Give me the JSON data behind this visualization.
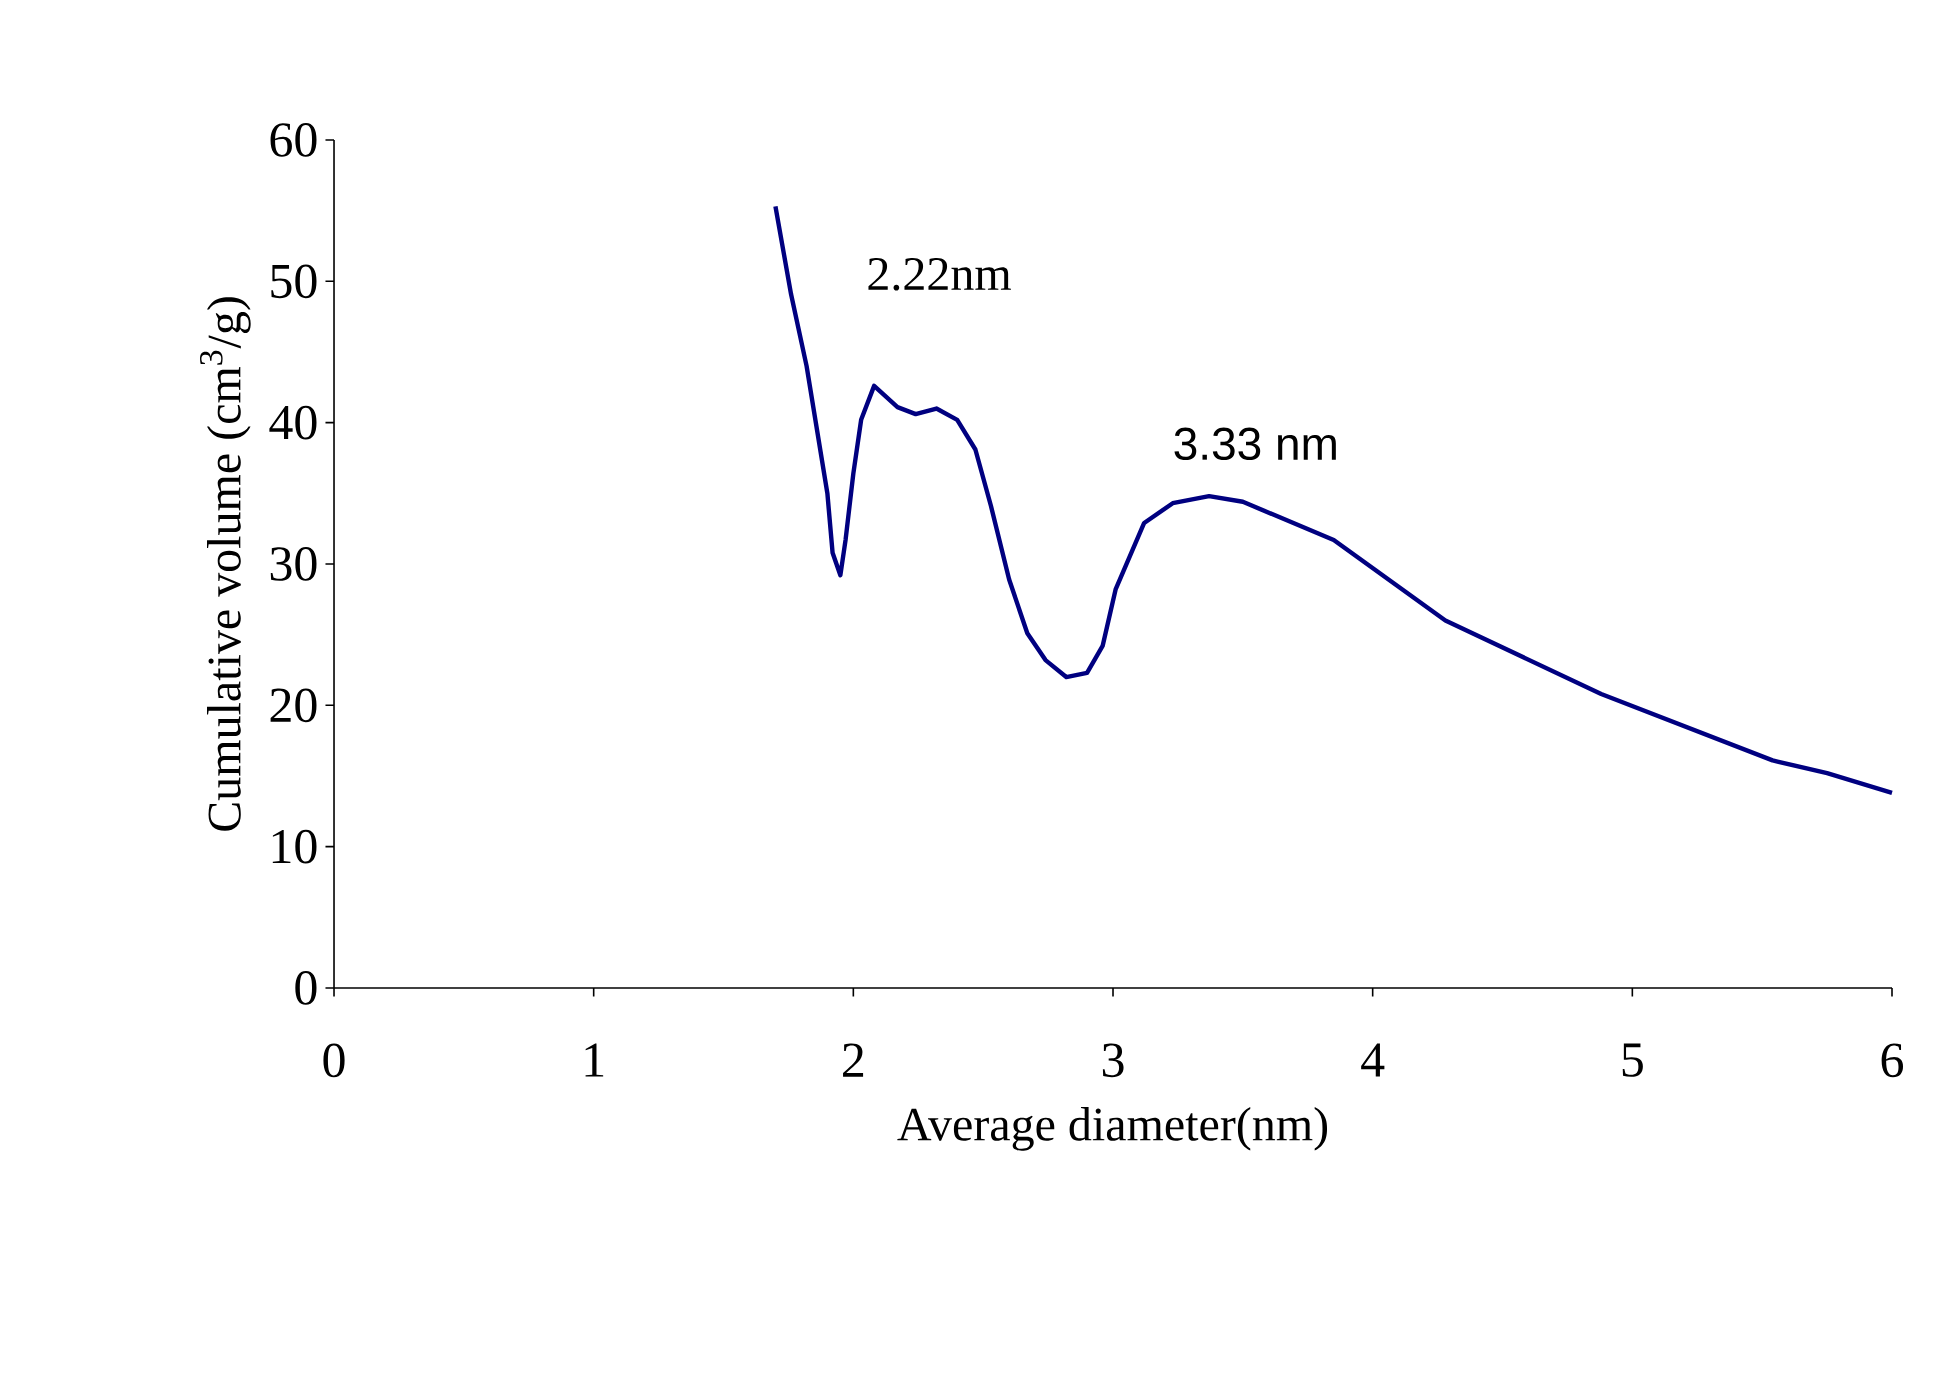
{
  "chart_data": {
    "type": "line",
    "xlabel": "Average diameter(nm)",
    "ylabel": "Cumulative volume (cm$^{3}$/g)",
    "xlim": [
      0,
      6
    ],
    "ylim": [
      0,
      60
    ],
    "xticks": [
      0,
      1,
      2,
      3,
      4,
      5,
      6
    ],
    "yticks": [
      0,
      10,
      20,
      30,
      40,
      50,
      60
    ],
    "grid": false,
    "marker": "none",
    "line_style": "solid",
    "annotations": [
      "2.22nm",
      "3.33 nm"
    ],
    "series": [
      {
        "color": "#000080",
        "x": [
          1.7,
          1.76,
          1.82,
          1.9,
          1.92,
          1.95,
          1.97,
          2.0,
          2.03,
          2.08,
          2.17,
          2.24,
          2.32,
          2.4,
          2.47,
          2.53,
          2.6,
          2.67,
          2.74,
          2.82,
          2.9,
          2.96,
          3.01,
          3.12,
          3.23,
          3.37,
          3.5,
          3.85,
          4.28,
          4.88,
          5.54,
          5.75,
          6.0
        ],
        "values": [
          55.3,
          49.1,
          44.0,
          35.0,
          30.8,
          29.2,
          31.7,
          36.4,
          40.2,
          42.6,
          41.1,
          40.6,
          41.0,
          40.2,
          38.1,
          34.1,
          28.9,
          25.1,
          23.2,
          22.0,
          22.3,
          24.2,
          28.2,
          32.9,
          34.3,
          34.8,
          34.4,
          31.7,
          26.0,
          20.8,
          16.1,
          15.2,
          13.8
        ]
      }
    ]
  }
}
